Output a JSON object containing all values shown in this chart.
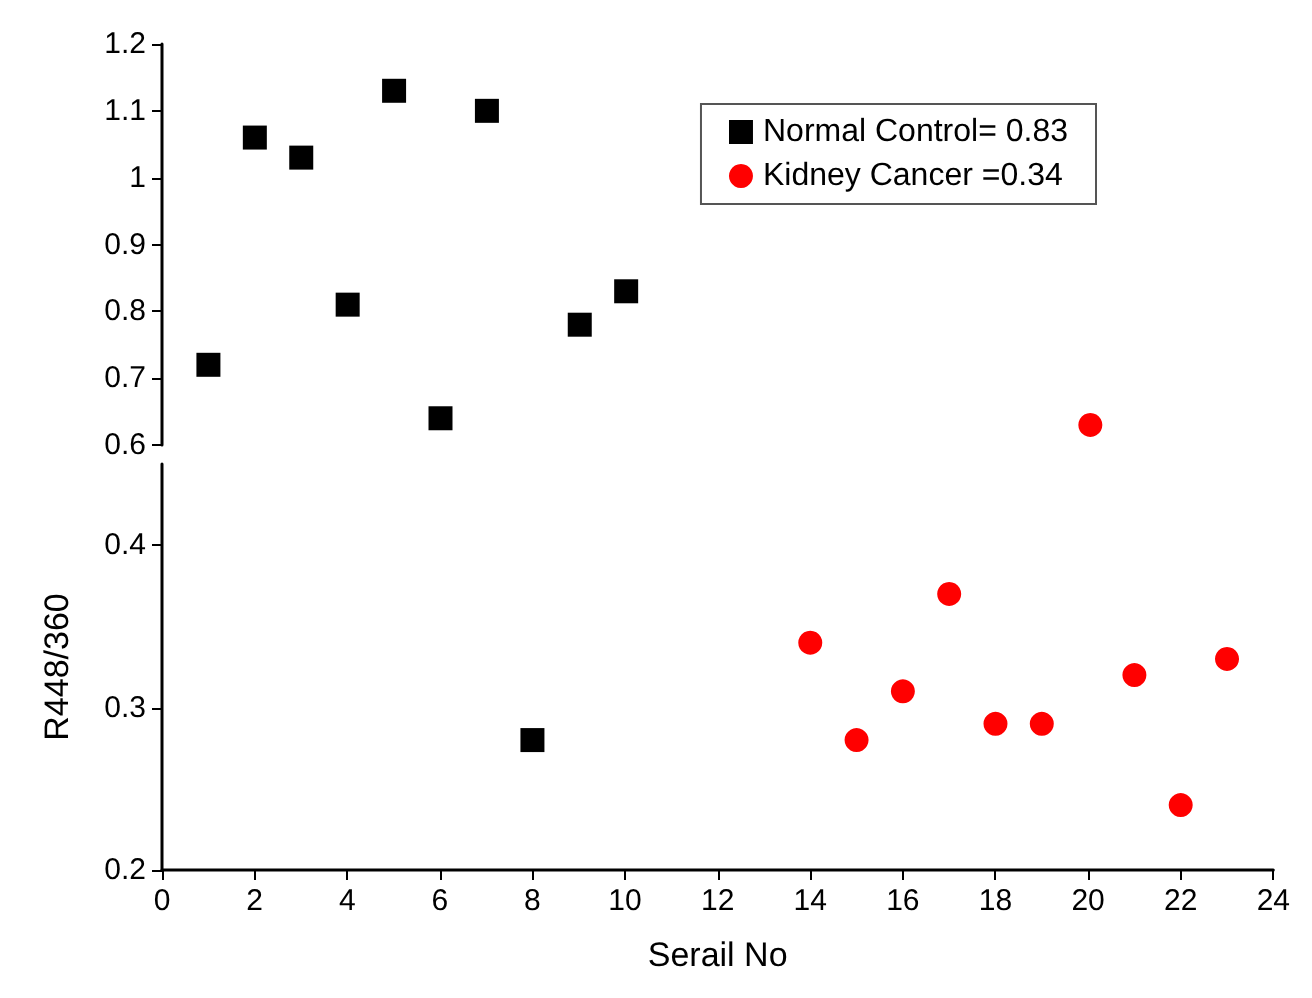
{
  "chart_data": [
    {
      "type": "scatter",
      "xlim": [
        0,
        24
      ],
      "ylim": [
        0.6,
        1.2
      ],
      "yticks": [
        0.6,
        0.7,
        0.8,
        0.9,
        1,
        1.1,
        1.2
      ],
      "tick_labels": "y",
      "legend": "top right",
      "grid": false,
      "series": [
        {
          "name": "Normal Control= 0.83",
          "color": "#000000",
          "marker": "square",
          "x": [
            1,
            2,
            3,
            4,
            5,
            6,
            7,
            9,
            10
          ],
          "values": [
            0.72,
            1.06,
            1.03,
            0.81,
            1.13,
            0.64,
            1.1,
            0.78,
            0.83
          ]
        },
        {
          "name": "Kidney Cancer =0.34",
          "color": "#ff0000",
          "marker": "circle",
          "x": [
            20
          ],
          "values": [
            0.63
          ]
        }
      ]
    },
    {
      "type": "scatter",
      "xlim": [
        0,
        24
      ],
      "xticks": [
        0,
        2,
        4,
        6,
        8,
        10,
        12,
        14,
        16,
        18,
        20,
        22,
        24
      ],
      "ylim": [
        0.2,
        0.45
      ],
      "yticks": [
        0.2,
        0.3,
        0.4
      ],
      "xlabel": "Serail No",
      "ylabel": "R448/360",
      "grid": false,
      "series": [
        {
          "color": "#000000",
          "marker": "square",
          "x": [
            8
          ],
          "values": [
            0.28
          ]
        },
        {
          "color": "#ff0000",
          "marker": "circle",
          "x": [
            14,
            15,
            16,
            17,
            18,
            19,
            21,
            22,
            23
          ],
          "values": [
            0.34,
            0.28,
            0.31,
            0.37,
            0.29,
            0.29,
            0.32,
            0.24,
            0.33
          ]
        }
      ]
    }
  ]
}
